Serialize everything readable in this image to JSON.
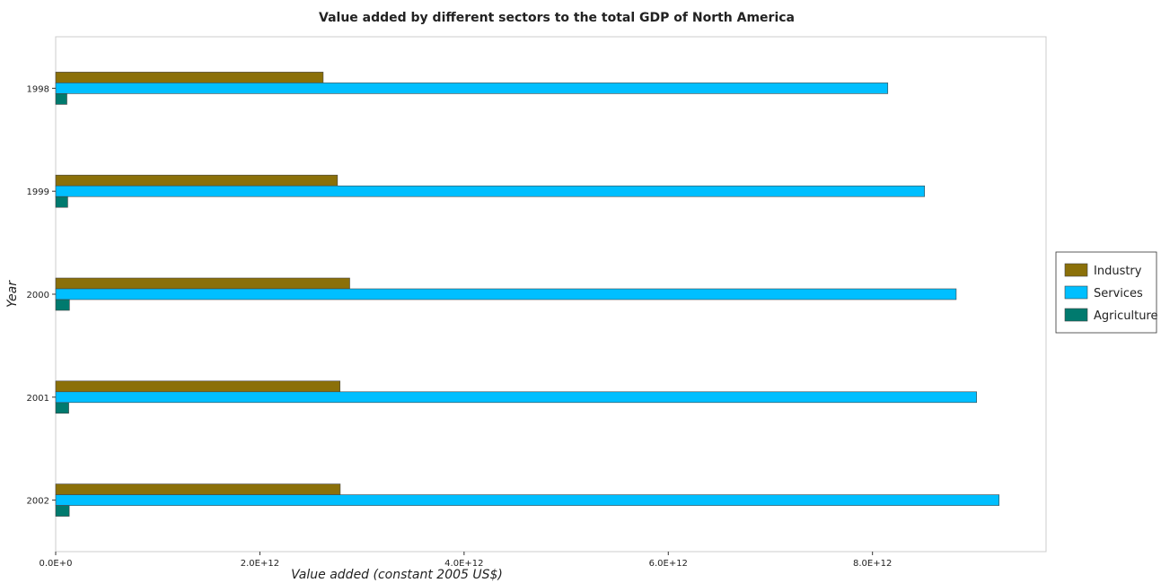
{
  "chart_data": {
    "type": "bar",
    "orientation": "horizontal",
    "title": "Value added by different sectors to the total GDP of North America",
    "xlabel": "Value added (constant 2005 US$)",
    "ylabel": "Year",
    "categories": [
      "1998",
      "1999",
      "2000",
      "2001",
      "2002"
    ],
    "series": [
      {
        "name": "Industry",
        "color": "#8b7009",
        "values": [
          2620000000000.0,
          2760000000000.0,
          2880000000000.0,
          2785000000000.0,
          2787000000000.0
        ]
      },
      {
        "name": "Services",
        "color": "#00bfff",
        "values": [
          8150000000000.0,
          8510000000000.0,
          8820000000000.0,
          9020000000000.0,
          9240000000000.0
        ]
      },
      {
        "name": "Agriculture",
        "color": "#007a6e",
        "values": [
          110000000000.0,
          118000000000.0,
          135000000000.0,
          128000000000.0,
          133000000000.0
        ]
      }
    ],
    "xlim": [
      0,
      9700000000000.0
    ],
    "xticks": [
      0,
      2000000000000.0,
      4000000000000.0,
      6000000000000.0,
      8000000000000.0
    ],
    "xtick_labels": [
      "0.0E+0",
      "2.0E+12",
      "4.0E+12",
      "6.0E+12",
      "8.0E+12"
    ],
    "grid": false,
    "legend_position": "right"
  }
}
